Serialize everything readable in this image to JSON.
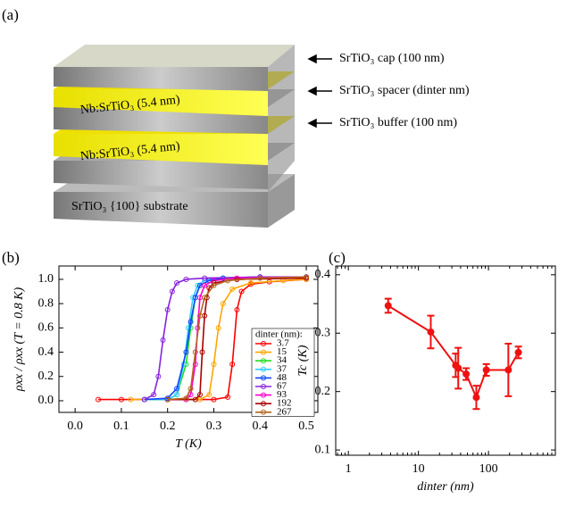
{
  "panel_labels": [
    "(a)",
    "(b)",
    "(c)"
  ],
  "diagram": {
    "layer_labels": [
      "Nb:SrTiO₃ (5.4 nm)",
      "Nb:SrTiO₃ (5.4 nm)",
      "SrTiO₃ {100} substrate"
    ],
    "arrow_labels": [
      "SrTiO₃ cap (100 nm)",
      "SrTiO₃ spacer (dinter nm)",
      "SrTiO₃ buffer (100 nm)"
    ]
  },
  "chart_data": [
    {
      "type": "line",
      "xlabel": "T (K)",
      "ylabel": "ρxx / ρxx (T = 0.8 K)",
      "xlim": [
        -0.035,
        0.525
      ],
      "ylim": [
        -0.096,
        1.11
      ],
      "xticks": [
        {
          "value": 0,
          "label": "0.0"
        },
        0.1,
        0.2,
        0.3,
        0.4,
        0.5
      ],
      "yticks": [
        {
          "value": 0,
          "label": "0.0"
        },
        0.2,
        0.4,
        0.6,
        0.8,
        {
          "value": 1,
          "label": "1.0"
        }
      ],
      "legend_title": "dinter (nm):",
      "legend": "lower right",
      "series": [
        {
          "name": "3.7",
          "color": "#ff0000",
          "x": [
            0.05,
            0.1,
            0.2,
            0.3,
            0.33,
            0.34,
            0.35,
            0.36,
            0.38,
            0.42,
            0.5
          ],
          "values": [
            0.01,
            0.01,
            0.01,
            0.01,
            0.03,
            0.3,
            0.75,
            0.9,
            0.96,
            0.98,
            1.0
          ]
        },
        {
          "name": "15",
          "color": "#ffa500",
          "x": [
            0.12,
            0.2,
            0.27,
            0.29,
            0.3,
            0.31,
            0.32,
            0.34,
            0.38,
            0.45,
            0.5
          ],
          "values": [
            0.01,
            0.01,
            0.01,
            0.05,
            0.3,
            0.6,
            0.8,
            0.92,
            0.97,
            0.99,
            1.0
          ]
        },
        {
          "name": "34",
          "color": "#22dd22",
          "x": [
            0.15,
            0.2,
            0.22,
            0.24,
            0.25,
            0.26,
            0.27,
            0.29,
            0.32,
            0.4,
            0.5
          ],
          "values": [
            0.01,
            0.01,
            0.05,
            0.3,
            0.6,
            0.85,
            0.95,
            0.99,
            1.01,
            1.02,
            1.02
          ]
        },
        {
          "name": "37",
          "color": "#33ccff",
          "x": [
            0.15,
            0.2,
            0.22,
            0.235,
            0.245,
            0.255,
            0.265,
            0.28,
            0.32,
            0.4,
            0.5
          ],
          "values": [
            0.01,
            0.01,
            0.05,
            0.3,
            0.6,
            0.85,
            0.95,
            0.99,
            1.01,
            1.02,
            1.02
          ]
        },
        {
          "name": "48",
          "color": "#1144ff",
          "x": [
            0.15,
            0.2,
            0.22,
            0.24,
            0.25,
            0.26,
            0.27,
            0.29,
            0.32,
            0.4,
            0.5
          ],
          "values": [
            0.01,
            0.02,
            0.1,
            0.4,
            0.65,
            0.85,
            0.95,
            0.99,
            1.01,
            1.02,
            1.02
          ]
        },
        {
          "name": "67",
          "color": "#8822dd",
          "x": [
            0.15,
            0.17,
            0.18,
            0.19,
            0.2,
            0.21,
            0.22,
            0.24,
            0.28,
            0.4,
            0.5
          ],
          "values": [
            0.01,
            0.05,
            0.2,
            0.5,
            0.75,
            0.9,
            0.97,
            1.0,
            1.01,
            1.02,
            1.02
          ]
        },
        {
          "name": "93",
          "color": "#ff00cc",
          "x": [
            0.2,
            0.24,
            0.25,
            0.26,
            0.265,
            0.27,
            0.28,
            0.3,
            0.35,
            0.5
          ],
          "values": [
            0.01,
            0.01,
            0.05,
            0.3,
            0.6,
            0.85,
            0.95,
            0.99,
            1.01,
            1.02
          ]
        },
        {
          "name": "192",
          "color": "#aa0000",
          "x": [
            0.2,
            0.26,
            0.27,
            0.275,
            0.28,
            0.285,
            0.29,
            0.3,
            0.35,
            0.5
          ],
          "values": [
            0.01,
            0.01,
            0.05,
            0.4,
            0.7,
            0.85,
            0.93,
            0.97,
            1.0,
            1.01
          ]
        },
        {
          "name": "267",
          "color": "#b5651d",
          "x": [
            0.2,
            0.24,
            0.25,
            0.26,
            0.27,
            0.28,
            0.3,
            0.33,
            0.4,
            0.5
          ],
          "values": [
            0.01,
            0.02,
            0.1,
            0.4,
            0.7,
            0.85,
            0.95,
            0.99,
            1.01,
            1.02
          ]
        }
      ]
    },
    {
      "type": "errorline",
      "xlabel": "dinter (nm)",
      "ylabel": "Tc (K)",
      "log_x": true,
      "xlim": [
        0.66,
        900
      ],
      "ylim": [
        0.091,
        0.415
      ],
      "xticks": [
        1,
        10,
        100
      ],
      "yticks": [
        0.1,
        0.2,
        0.3,
        0.4
      ],
      "color": "#ee1111",
      "x": [
        3.7,
        15,
        34,
        37,
        48,
        67,
        93,
        192,
        267
      ],
      "values": [
        0.347,
        0.302,
        0.245,
        0.24,
        0.23,
        0.19,
        0.237,
        0.237,
        0.267
      ],
      "errors": [
        0.012,
        0.028,
        0.02,
        0.035,
        0.01,
        0.02,
        0.01,
        0.045,
        0.01
      ]
    }
  ]
}
